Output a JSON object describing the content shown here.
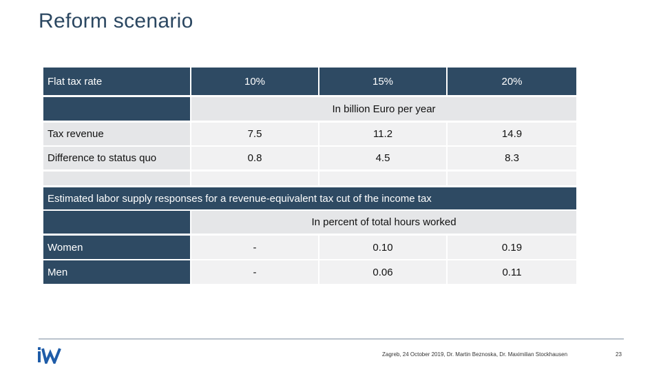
{
  "slide": {
    "title": "Reform scenario"
  },
  "table1": {
    "header": {
      "label": "Flat tax rate",
      "col1": "10%",
      "col2": "15%",
      "col3": "20%"
    },
    "unit_note": "In billion Euro per year",
    "rows": [
      {
        "label": "Tax revenue",
        "v1": "7.5",
        "v2": "11.2",
        "v3": "14.9"
      },
      {
        "label": "Difference to status quo",
        "v1": "0.8",
        "v2": "4.5",
        "v3": "8.3"
      }
    ]
  },
  "table2": {
    "heading": "Estimated labor supply responses for a revenue-equivalent tax cut of the income tax",
    "unit_note": "In percent of total hours worked",
    "rows": [
      {
        "label": "Women",
        "v1": "-",
        "v2": "0.10",
        "v3": "0.19"
      },
      {
        "label": "Men",
        "v1": "-",
        "v2": "0.06",
        "v3": "0.11"
      }
    ]
  },
  "footer": {
    "logo_text": "iW",
    "text": "Zagreb, 24 October 2019, Dr. Martin Beznoska, Dr. Maximilian Stockhausen",
    "page_number": "23"
  },
  "colors": {
    "header_blue": "#2e4a63",
    "row_gray": "#e5e6e8",
    "logo_blue": "#1f5ca8"
  }
}
